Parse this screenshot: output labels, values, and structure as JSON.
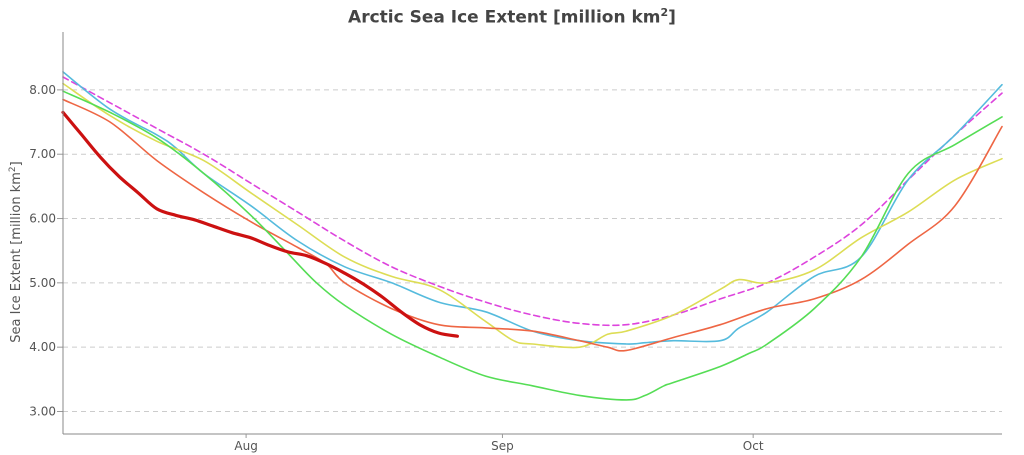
{
  "chart_data": {
    "type": "line",
    "title": "Arctic Sea Ice Extent [million km",
    "title_superscript": "2",
    "title_suffix": "]",
    "ylabel": "Sea Ice Extent [million km",
    "ylabel_superscript": "2",
    "ylabel_suffix": "]",
    "xlabel": "",
    "ylim": [
      2.65,
      8.9
    ],
    "xlim": [
      0,
      100
    ],
    "grid": {
      "y": true,
      "x": false
    },
    "y_ticks": [
      "3.00",
      "4.00",
      "5.00",
      "6.00",
      "7.00",
      "8.00"
    ],
    "y_tick_values": [
      3,
      4,
      5,
      6,
      7,
      8
    ],
    "x_ticks": [
      {
        "label": "Aug",
        "value": 19.5
      },
      {
        "label": "Sep",
        "value": 46.8
      },
      {
        "label": "Oct",
        "value": 73.5
      }
    ],
    "series": [
      {
        "color": "#dd44dd",
        "style": "dashed",
        "width": 1.6,
        "x": [
          0,
          5,
          10,
          15,
          20,
          25,
          30,
          35,
          40,
          45,
          50,
          55,
          60,
          65,
          70,
          75,
          80,
          85,
          90,
          95,
          100
        ],
        "y": [
          8.2,
          7.8,
          7.4,
          7.0,
          6.55,
          6.1,
          5.65,
          5.25,
          4.95,
          4.7,
          4.5,
          4.37,
          4.35,
          4.5,
          4.75,
          5.0,
          5.4,
          5.9,
          6.6,
          7.3,
          7.95
        ]
      },
      {
        "color": "#55bbdd",
        "style": "solid",
        "width": 1.6,
        "x": [
          0,
          5,
          10,
          12,
          15,
          20,
          25,
          30,
          35,
          40,
          45,
          50,
          55,
          60,
          62,
          65,
          70,
          72,
          75,
          80,
          85,
          90,
          95,
          100
        ],
        "y": [
          8.28,
          7.7,
          7.3,
          7.1,
          6.7,
          6.2,
          5.65,
          5.25,
          5.0,
          4.7,
          4.55,
          4.25,
          4.1,
          4.05,
          4.07,
          4.1,
          4.1,
          4.3,
          4.55,
          5.1,
          5.4,
          6.6,
          7.3,
          8.08
        ]
      },
      {
        "color": "#dddd55",
        "style": "solid",
        "width": 1.6,
        "x": [
          0,
          5,
          10,
          15,
          20,
          25,
          30,
          35,
          40,
          45,
          48,
          50,
          55,
          58,
          60,
          65,
          70,
          72,
          75,
          80,
          85,
          90,
          95,
          100
        ],
        "y": [
          8.1,
          7.6,
          7.2,
          6.9,
          6.4,
          5.9,
          5.4,
          5.1,
          4.9,
          4.4,
          4.1,
          4.05,
          4.0,
          4.2,
          4.25,
          4.5,
          4.9,
          5.05,
          5.0,
          5.2,
          5.7,
          6.1,
          6.6,
          6.93
        ]
      },
      {
        "color": "#ee6644",
        "style": "solid",
        "width": 1.6,
        "x": [
          0,
          5,
          10,
          15,
          20,
          25,
          28,
          30,
          35,
          40,
          45,
          50,
          55,
          58,
          60,
          65,
          70,
          75,
          80,
          85,
          90,
          95,
          100
        ],
        "y": [
          7.85,
          7.5,
          6.9,
          6.4,
          5.95,
          5.55,
          5.3,
          5.0,
          4.6,
          4.35,
          4.3,
          4.25,
          4.1,
          4.0,
          3.95,
          4.15,
          4.35,
          4.6,
          4.75,
          5.05,
          5.6,
          6.2,
          7.43
        ]
      },
      {
        "color": "#55dd55",
        "style": "solid",
        "width": 1.6,
        "x": [
          0,
          5,
          10,
          15,
          20,
          24,
          27,
          30,
          35,
          40,
          45,
          50,
          55,
          60,
          62,
          64,
          65,
          70,
          73,
          75,
          80,
          85,
          90,
          95,
          100
        ],
        "y": [
          7.98,
          7.65,
          7.25,
          6.7,
          6.05,
          5.45,
          5.0,
          4.65,
          4.2,
          3.85,
          3.55,
          3.4,
          3.25,
          3.18,
          3.25,
          3.4,
          3.45,
          3.7,
          3.9,
          4.05,
          4.6,
          5.4,
          6.7,
          7.15,
          7.58
        ]
      },
      {
        "color": "#cc1111",
        "style": "solid",
        "width": 3.2,
        "x": [
          0,
          2,
          4,
          6,
          8,
          10,
          12,
          14,
          16,
          18,
          20,
          22,
          24,
          26,
          28,
          30,
          32,
          34,
          36,
          38,
          40,
          42
        ],
        "y": [
          7.65,
          7.3,
          6.95,
          6.65,
          6.4,
          6.15,
          6.05,
          5.98,
          5.88,
          5.78,
          5.7,
          5.58,
          5.48,
          5.42,
          5.3,
          5.15,
          4.98,
          4.78,
          4.55,
          4.35,
          4.22,
          4.17
        ]
      }
    ]
  }
}
